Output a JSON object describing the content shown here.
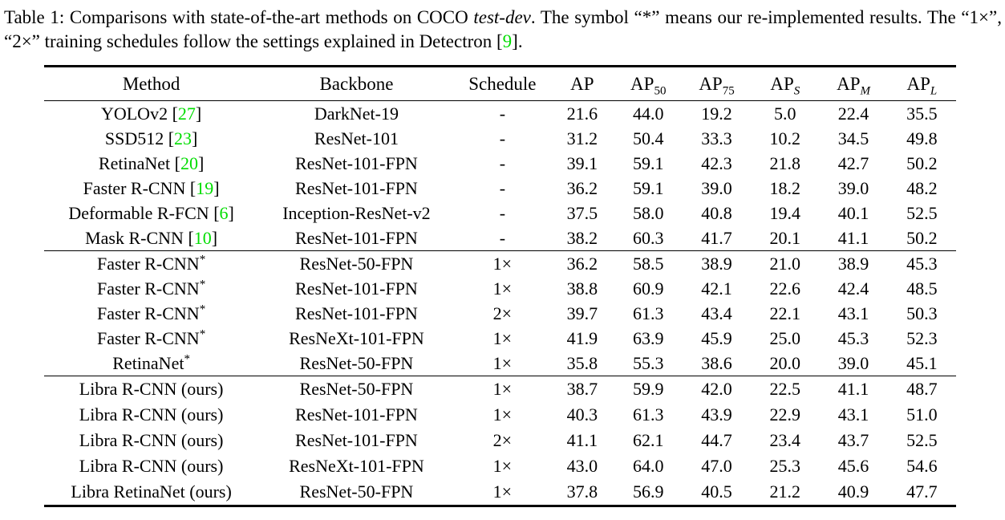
{
  "page": {
    "background": "#ffffff",
    "text_color": "#000000",
    "citation_color": "#00DD00"
  },
  "caption": {
    "prefix": "Table 1: Comparisons with state-of-the-art methods on COCO ",
    "emph": "test-dev",
    "middle": ". The symbol “*” means our re-implemented results. The “1×”, “2×” training schedules follow the settings explained in Detectron [",
    "citation": "9",
    "suffix": "]."
  },
  "symbols": {
    "star": "*",
    "cite_open": " [",
    "cite_close": "]"
  },
  "table": {
    "columns": [
      {
        "key": "method",
        "label": "Method",
        "sub": "",
        "italic_sub": false
      },
      {
        "key": "backbone",
        "label": "Backbone",
        "sub": "",
        "italic_sub": false
      },
      {
        "key": "schedule",
        "label": "Schedule",
        "sub": "",
        "italic_sub": false
      },
      {
        "key": "ap",
        "label": "AP",
        "sub": "",
        "italic_sub": false
      },
      {
        "key": "ap50",
        "label": "AP",
        "sub": "50",
        "italic_sub": false
      },
      {
        "key": "ap75",
        "label": "AP",
        "sub": "75",
        "italic_sub": false
      },
      {
        "key": "aps",
        "label": "AP",
        "sub": "S",
        "italic_sub": true
      },
      {
        "key": "apm",
        "label": "AP",
        "sub": "M",
        "italic_sub": true
      },
      {
        "key": "apl",
        "label": "AP",
        "sub": "L",
        "italic_sub": true
      }
    ],
    "groups": [
      {
        "rows": [
          {
            "method": "YOLOv2",
            "cite": "27",
            "star": false,
            "backbone": "DarkNet-19",
            "schedule": "-",
            "values": [
              "21.6",
              "44.0",
              "19.2",
              "5.0",
              "22.4",
              "35.5"
            ]
          },
          {
            "method": "SSD512",
            "cite": "23",
            "star": false,
            "backbone": "ResNet-101",
            "schedule": "-",
            "values": [
              "31.2",
              "50.4",
              "33.3",
              "10.2",
              "34.5",
              "49.8"
            ]
          },
          {
            "method": "RetinaNet",
            "cite": "20",
            "star": false,
            "backbone": "ResNet-101-FPN",
            "schedule": "-",
            "values": [
              "39.1",
              "59.1",
              "42.3",
              "21.8",
              "42.7",
              "50.2"
            ]
          },
          {
            "method": "Faster R-CNN",
            "cite": "19",
            "star": false,
            "backbone": "ResNet-101-FPN",
            "schedule": "-",
            "values": [
              "36.2",
              "59.1",
              "39.0",
              "18.2",
              "39.0",
              "48.2"
            ]
          },
          {
            "method": "Deformable R-FCN",
            "cite": "6",
            "star": false,
            "backbone": "Inception-ResNet-v2",
            "schedule": "-",
            "values": [
              "37.5",
              "58.0",
              "40.8",
              "19.4",
              "40.1",
              "52.5"
            ]
          },
          {
            "method": "Mask R-CNN",
            "cite": "10",
            "star": false,
            "backbone": "ResNet-101-FPN",
            "schedule": "-",
            "values": [
              "38.2",
              "60.3",
              "41.7",
              "20.1",
              "41.1",
              "50.2"
            ]
          }
        ]
      },
      {
        "rows": [
          {
            "method": "Faster R-CNN",
            "cite": "",
            "star": true,
            "backbone": "ResNet-50-FPN",
            "schedule": "1×",
            "values": [
              "36.2",
              "58.5",
              "38.9",
              "21.0",
              "38.9",
              "45.3"
            ]
          },
          {
            "method": "Faster R-CNN",
            "cite": "",
            "star": true,
            "backbone": "ResNet-101-FPN",
            "schedule": "1×",
            "values": [
              "38.8",
              "60.9",
              "42.1",
              "22.6",
              "42.4",
              "48.5"
            ]
          },
          {
            "method": "Faster R-CNN",
            "cite": "",
            "star": true,
            "backbone": "ResNet-101-FPN",
            "schedule": "2×",
            "values": [
              "39.7",
              "61.3",
              "43.4",
              "22.1",
              "43.1",
              "50.3"
            ]
          },
          {
            "method": "Faster R-CNN",
            "cite": "",
            "star": true,
            "backbone": "ResNeXt-101-FPN",
            "schedule": "1×",
            "values": [
              "41.9",
              "63.9",
              "45.9",
              "25.0",
              "45.3",
              "52.3"
            ]
          },
          {
            "method": "RetinaNet",
            "cite": "",
            "star": true,
            "backbone": "ResNet-50-FPN",
            "schedule": "1×",
            "values": [
              "35.8",
              "55.3",
              "38.6",
              "20.0",
              "39.0",
              "45.1"
            ]
          }
        ]
      },
      {
        "rows": [
          {
            "method": "Libra R-CNN (ours)",
            "cite": "",
            "star": false,
            "backbone": "ResNet-50-FPN",
            "schedule": "1×",
            "values": [
              "38.7",
              "59.9",
              "42.0",
              "22.5",
              "41.1",
              "48.7"
            ]
          },
          {
            "method": "Libra R-CNN (ours)",
            "cite": "",
            "star": false,
            "backbone": "ResNet-101-FPN",
            "schedule": "1×",
            "values": [
              "40.3",
              "61.3",
              "43.9",
              "22.9",
              "43.1",
              "51.0"
            ]
          },
          {
            "method": "Libra R-CNN (ours)",
            "cite": "",
            "star": false,
            "backbone": "ResNet-101-FPN",
            "schedule": "2×",
            "values": [
              "41.1",
              "62.1",
              "44.7",
              "23.4",
              "43.7",
              "52.5"
            ]
          },
          {
            "method": "Libra R-CNN (ours)",
            "cite": "",
            "star": false,
            "backbone": "ResNeXt-101-FPN",
            "schedule": "1×",
            "values": [
              "43.0",
              "64.0",
              "47.0",
              "25.3",
              "45.6",
              "54.6"
            ]
          },
          {
            "method": "Libra RetinaNet (ours)",
            "cite": "",
            "star": false,
            "backbone": "ResNet-50-FPN",
            "schedule": "1×",
            "values": [
              "37.8",
              "56.9",
              "40.5",
              "21.2",
              "40.9",
              "47.7"
            ]
          }
        ]
      }
    ]
  }
}
